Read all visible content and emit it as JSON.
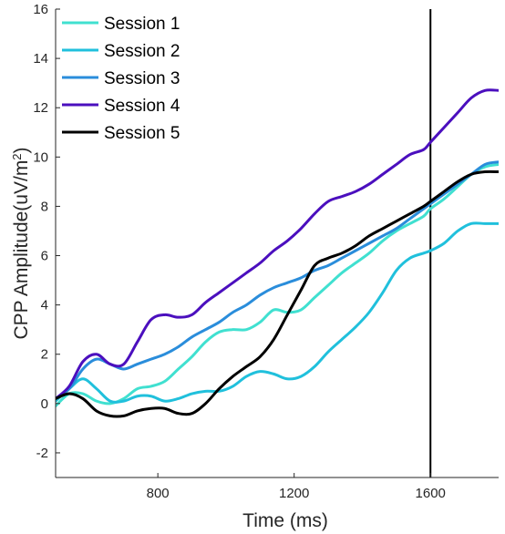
{
  "chart_data": {
    "type": "line",
    "title": "",
    "xlabel": "Time (ms)",
    "ylabel": {
      "main": "CPP Amplitude(uV/m",
      "sup": "2",
      "end": ")"
    },
    "xlim": [
      500,
      1800
    ],
    "ylim": [
      -3,
      16
    ],
    "xticks": [
      800,
      1200,
      1600
    ],
    "yticks": [
      -2,
      0,
      2,
      4,
      6,
      8,
      10,
      12,
      14,
      16
    ],
    "grid": false,
    "legend_position": "top-left",
    "vline": {
      "x": 1600,
      "color": "#000000"
    },
    "series": [
      {
        "name": "Session 1",
        "color": "#40e0d0",
        "x": [
          500,
          540,
          580,
          620,
          660,
          700,
          740,
          780,
          820,
          860,
          900,
          940,
          980,
          1020,
          1060,
          1100,
          1140,
          1180,
          1220,
          1260,
          1300,
          1340,
          1380,
          1420,
          1460,
          1500,
          1540,
          1580,
          1600,
          1640,
          1680,
          1720,
          1760,
          1800
        ],
        "y": [
          -0.1,
          0.4,
          0.4,
          0.1,
          0.0,
          0.2,
          0.6,
          0.7,
          0.9,
          1.4,
          1.9,
          2.5,
          2.9,
          3.0,
          3.0,
          3.3,
          3.8,
          3.7,
          3.8,
          4.3,
          4.8,
          5.3,
          5.7,
          6.1,
          6.6,
          7.0,
          7.3,
          7.6,
          7.9,
          8.3,
          8.8,
          9.3,
          9.6,
          9.7
        ]
      },
      {
        "name": "Session 2",
        "color": "#20c0dc",
        "x": [
          500,
          540,
          580,
          620,
          660,
          700,
          740,
          780,
          820,
          860,
          900,
          940,
          980,
          1020,
          1060,
          1100,
          1140,
          1180,
          1220,
          1260,
          1300,
          1340,
          1380,
          1420,
          1460,
          1500,
          1540,
          1580,
          1600,
          1640,
          1680,
          1720,
          1760,
          1800
        ],
        "y": [
          0.1,
          0.6,
          1.0,
          0.6,
          0.1,
          0.1,
          0.3,
          0.3,
          0.1,
          0.2,
          0.4,
          0.5,
          0.5,
          0.7,
          1.1,
          1.3,
          1.2,
          1.0,
          1.1,
          1.5,
          2.1,
          2.6,
          3.1,
          3.7,
          4.5,
          5.4,
          5.9,
          6.1,
          6.2,
          6.5,
          7.0,
          7.3,
          7.3,
          7.3
        ]
      },
      {
        "name": "Session 3",
        "color": "#2a8ddb",
        "x": [
          500,
          540,
          580,
          620,
          660,
          700,
          740,
          780,
          820,
          860,
          900,
          940,
          980,
          1020,
          1060,
          1100,
          1140,
          1180,
          1220,
          1260,
          1300,
          1340,
          1380,
          1420,
          1460,
          1500,
          1540,
          1580,
          1600,
          1640,
          1680,
          1720,
          1760,
          1800
        ],
        "y": [
          0.2,
          0.6,
          1.4,
          1.8,
          1.6,
          1.4,
          1.6,
          1.8,
          2.0,
          2.3,
          2.7,
          3.0,
          3.3,
          3.7,
          4.0,
          4.4,
          4.7,
          4.9,
          5.1,
          5.4,
          5.6,
          5.9,
          6.2,
          6.5,
          6.8,
          7.1,
          7.5,
          7.9,
          8.1,
          8.5,
          8.9,
          9.3,
          9.7,
          9.8
        ]
      },
      {
        "name": "Session 4",
        "color": "#4b0fbe",
        "x": [
          500,
          540,
          580,
          620,
          660,
          700,
          740,
          780,
          820,
          860,
          900,
          940,
          980,
          1020,
          1060,
          1100,
          1140,
          1180,
          1220,
          1260,
          1300,
          1340,
          1380,
          1420,
          1460,
          1500,
          1540,
          1580,
          1600,
          1640,
          1680,
          1720,
          1760,
          1800
        ],
        "y": [
          0.2,
          0.7,
          1.7,
          2.0,
          1.6,
          1.6,
          2.5,
          3.4,
          3.6,
          3.5,
          3.6,
          4.1,
          4.5,
          4.9,
          5.3,
          5.7,
          6.2,
          6.6,
          7.1,
          7.7,
          8.2,
          8.4,
          8.6,
          8.9,
          9.3,
          9.7,
          10.1,
          10.3,
          10.6,
          11.2,
          11.8,
          12.4,
          12.7,
          12.7
        ]
      },
      {
        "name": "Session 5",
        "color": "#000000",
        "x": [
          500,
          540,
          580,
          620,
          660,
          700,
          740,
          780,
          820,
          860,
          900,
          940,
          980,
          1020,
          1060,
          1100,
          1140,
          1180,
          1220,
          1260,
          1300,
          1340,
          1380,
          1420,
          1460,
          1500,
          1540,
          1580,
          1600,
          1640,
          1680,
          1720,
          1760,
          1800
        ],
        "y": [
          0.2,
          0.4,
          0.2,
          -0.3,
          -0.5,
          -0.5,
          -0.3,
          -0.2,
          -0.2,
          -0.4,
          -0.4,
          0.0,
          0.6,
          1.1,
          1.5,
          1.9,
          2.6,
          3.6,
          4.6,
          5.6,
          5.9,
          6.1,
          6.4,
          6.8,
          7.1,
          7.4,
          7.7,
          8.0,
          8.2,
          8.6,
          9.0,
          9.3,
          9.4,
          9.4
        ]
      }
    ]
  }
}
